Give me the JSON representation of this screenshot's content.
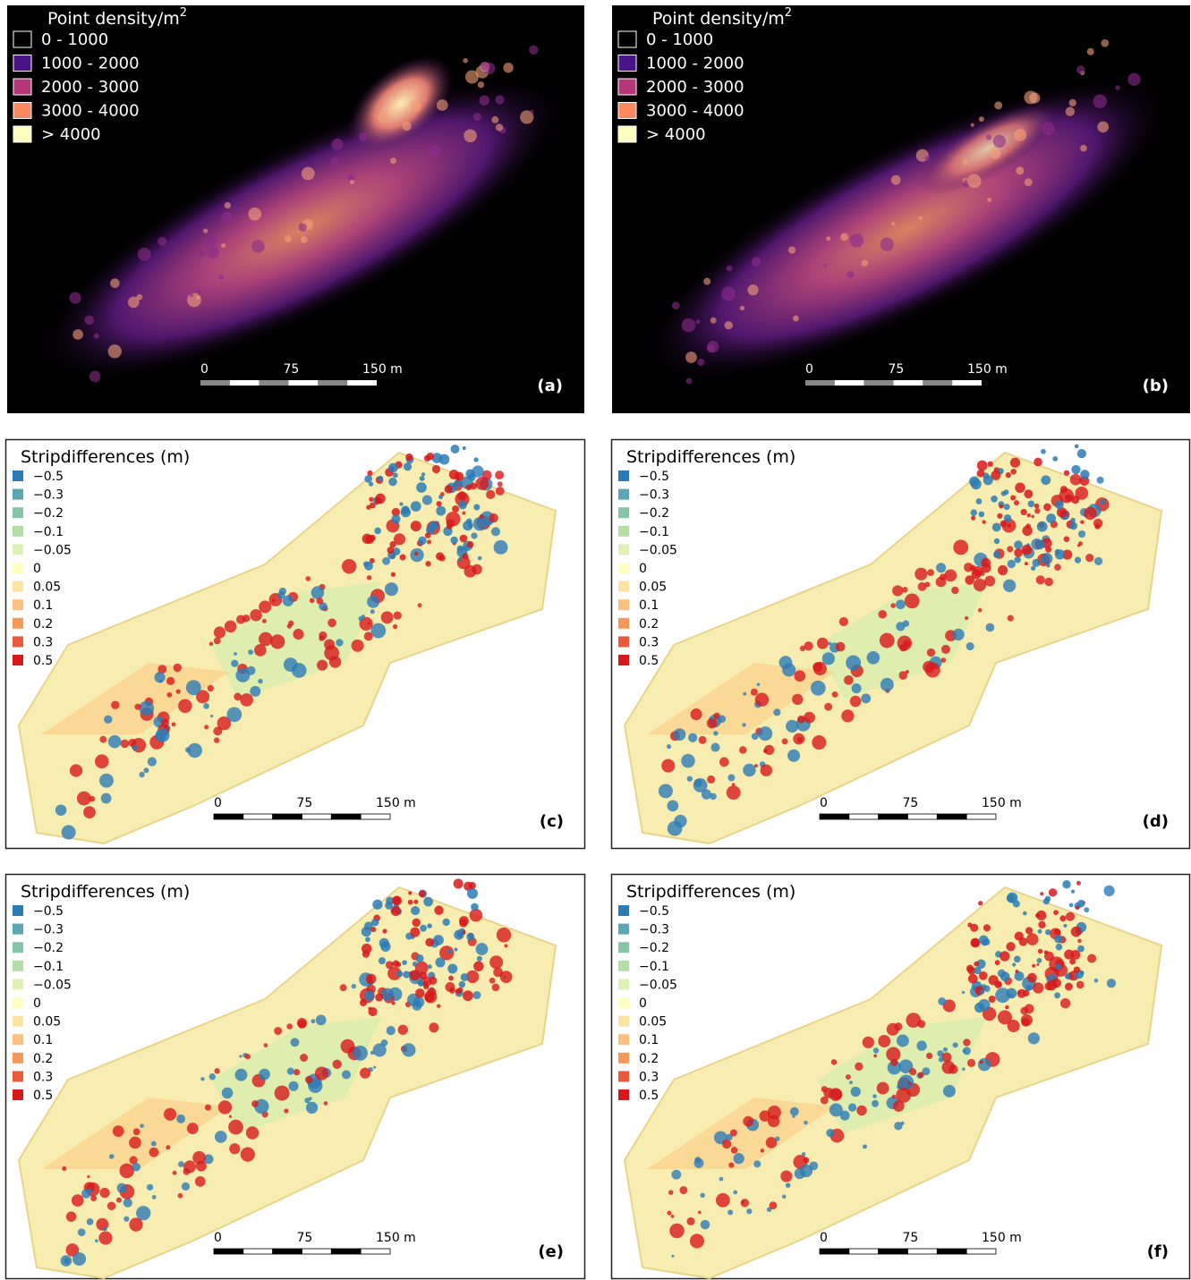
{
  "panels": [
    {
      "label": "(a)",
      "legend": {
        "title": "Point density/m",
        "title_sup": "2",
        "items": [
          {
            "label": "0 - 1000",
            "color": "#000000"
          },
          {
            "label": "1000 - 2000",
            "color": "#4a1486"
          },
          {
            "label": "2000 - 3000",
            "color": "#b5367a"
          },
          {
            "label": "3000 - 4000",
            "color": "#fb8861"
          },
          {
            "label": "> 4000",
            "color": "#fcfdbf"
          }
        ]
      },
      "scale": [
        "0",
        "75",
        "150 m"
      ]
    },
    {
      "label": "(b)",
      "legend": {
        "title": "Point density/m",
        "title_sup": "2",
        "items": [
          {
            "label": "0 - 1000",
            "color": "#000000"
          },
          {
            "label": "1000 - 2000",
            "color": "#4a1486"
          },
          {
            "label": "2000 - 3000",
            "color": "#b5367a"
          },
          {
            "label": "3000 - 4000",
            "color": "#fb8861"
          },
          {
            "label": "> 4000",
            "color": "#fcfdbf"
          }
        ]
      },
      "scale": [
        "0",
        "75",
        "150 m"
      ]
    },
    {
      "label": "(c)",
      "legend": {
        "title": "Stripdifferences (m)",
        "items": [
          {
            "label": "−0.5",
            "color": "#2c7bb6"
          },
          {
            "label": "−0.3",
            "color": "#5aa6b4"
          },
          {
            "label": "−0.2",
            "color": "#86c4a8"
          },
          {
            "label": "−0.1",
            "color": "#b5dea6"
          },
          {
            "label": "−0.05",
            "color": "#dff1b5"
          },
          {
            "label": "0",
            "color": "#ffffbf"
          },
          {
            "label": "0.05",
            "color": "#fee3a3"
          },
          {
            "label": "0.1",
            "color": "#fdc07f"
          },
          {
            "label": "0.2",
            "color": "#f89858"
          },
          {
            "label": "0.3",
            "color": "#e95a3c"
          },
          {
            "label": "0.5",
            "color": "#d7191c"
          }
        ]
      },
      "scale": [
        "0",
        "75",
        "150 m"
      ]
    },
    {
      "label": "(d)",
      "legend": {
        "title": "Stripdifferences (m)",
        "items": [
          {
            "label": "−0.5",
            "color": "#2c7bb6"
          },
          {
            "label": "−0.3",
            "color": "#5aa6b4"
          },
          {
            "label": "−0.2",
            "color": "#86c4a8"
          },
          {
            "label": "−0.1",
            "color": "#b5dea6"
          },
          {
            "label": "−0.05",
            "color": "#dff1b5"
          },
          {
            "label": "0",
            "color": "#ffffbf"
          },
          {
            "label": "0.05",
            "color": "#fee3a3"
          },
          {
            "label": "0.1",
            "color": "#fdc07f"
          },
          {
            "label": "0.2",
            "color": "#f89858"
          },
          {
            "label": "0.3",
            "color": "#e95a3c"
          },
          {
            "label": "0.5",
            "color": "#d7191c"
          }
        ]
      },
      "scale": [
        "0",
        "75",
        "150 m"
      ]
    },
    {
      "label": "(e)",
      "legend": {
        "title": "Stripdifferences (m)",
        "items": [
          {
            "label": "−0.5",
            "color": "#2c7bb6"
          },
          {
            "label": "−0.3",
            "color": "#5aa6b4"
          },
          {
            "label": "−0.2",
            "color": "#86c4a8"
          },
          {
            "label": "−0.1",
            "color": "#b5dea6"
          },
          {
            "label": "−0.05",
            "color": "#dff1b5"
          },
          {
            "label": "0",
            "color": "#ffffbf"
          },
          {
            "label": "0.05",
            "color": "#fee3a3"
          },
          {
            "label": "0.1",
            "color": "#fdc07f"
          },
          {
            "label": "0.2",
            "color": "#f89858"
          },
          {
            "label": "0.3",
            "color": "#e95a3c"
          },
          {
            "label": "0.5",
            "color": "#d7191c"
          }
        ]
      },
      "scale": [
        "0",
        "75",
        "150 m"
      ]
    },
    {
      "label": "(f)",
      "legend": {
        "title": "Stripdifferences (m)",
        "items": [
          {
            "label": "−0.5",
            "color": "#2c7bb6"
          },
          {
            "label": "−0.3",
            "color": "#5aa6b4"
          },
          {
            "label": "−0.2",
            "color": "#86c4a8"
          },
          {
            "label": "−0.1",
            "color": "#b5dea6"
          },
          {
            "label": "−0.05",
            "color": "#dff1b5"
          },
          {
            "label": "0",
            "color": "#ffffbf"
          },
          {
            "label": "0.05",
            "color": "#fee3a3"
          },
          {
            "label": "0.1",
            "color": "#fdc07f"
          },
          {
            "label": "0.2",
            "color": "#f89858"
          },
          {
            "label": "0.3",
            "color": "#e95a3c"
          },
          {
            "label": "0.5",
            "color": "#d7191c"
          }
        ]
      },
      "scale": [
        "0",
        "75",
        "150 m"
      ]
    }
  ]
}
